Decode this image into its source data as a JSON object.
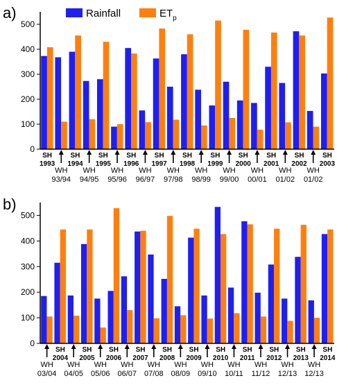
{
  "figure": {
    "legend": {
      "rainfall": "Rainfall",
      "etp_base": "ET",
      "etp_sub": "p"
    },
    "colors": {
      "rainfall": "#1f1fef",
      "etp": "#ff7f0e",
      "axis": "#000000"
    }
  },
  "chart_data": [
    {
      "type": "bar",
      "panel_label": "a)",
      "series": [
        {
          "name": "Rainfall",
          "color": "#1f1fef",
          "values": [
            373,
            368,
            390,
            273,
            280,
            90,
            405,
            155,
            363,
            250,
            380,
            238,
            175,
            270,
            195,
            185,
            330,
            265,
            472,
            153,
            303
          ]
        },
        {
          "name": "ETp",
          "color": "#ff7f0e",
          "values": [
            408,
            110,
            455,
            120,
            430,
            100,
            383,
            108,
            483,
            118,
            460,
            95,
            515,
            125,
            478,
            78,
            467,
            107,
            455,
            90,
            527
          ]
        }
      ],
      "season": [
        "SH",
        "WH",
        "SH",
        "WH",
        "SH",
        "WH",
        "SH",
        "WH",
        "SH",
        "WH",
        "SH",
        "WH",
        "SH",
        "WH",
        "SH",
        "WH",
        "SH",
        "WH",
        "SH",
        "WH",
        "SH"
      ],
      "period": [
        "1993",
        "93/94",
        "1994",
        "94/95",
        "1995",
        "95/96",
        "1996",
        "96/97",
        "1997",
        "97/98",
        "1998",
        "98/99",
        "1999",
        "99/00",
        "2000",
        "00/01",
        "2001",
        "01/02",
        "2002",
        "01/02",
        "2003"
      ],
      "yticks": [
        0,
        100,
        200,
        300,
        400,
        500
      ],
      "ylim": [
        0,
        550
      ]
    },
    {
      "type": "bar",
      "panel_label": "b)",
      "series": [
        {
          "name": "Rainfall",
          "color": "#1f1fef",
          "values": [
            185,
            315,
            187,
            388,
            175,
            205,
            262,
            437,
            347,
            252,
            145,
            413,
            187,
            533,
            218,
            477,
            198,
            308,
            175,
            338,
            168,
            427
          ]
        },
        {
          "name": "ETp",
          "color": "#ff7f0e",
          "values": [
            105,
            445,
            108,
            445,
            62,
            528,
            130,
            440,
            98,
            498,
            110,
            448,
            97,
            427,
            118,
            465,
            105,
            448,
            88,
            463,
            100,
            445
          ]
        }
      ],
      "season": [
        "WH",
        "SH",
        "WH",
        "SH",
        "WH",
        "SH",
        "WH",
        "SH",
        "WH",
        "SH",
        "WH",
        "SH",
        "WH",
        "SH",
        "WH",
        "SH",
        "WH",
        "SH",
        "WH",
        "SH",
        "WH",
        "SH"
      ],
      "period": [
        "03/04",
        "2004",
        "04/05",
        "2005",
        "05/06",
        "2006",
        "06/07",
        "2007",
        "07/08",
        "2008",
        "08/09",
        "2009",
        "09/10",
        "2010",
        "10/11",
        "2011",
        "11/12",
        "2012",
        "12/13",
        "2013",
        "12/13",
        "2014"
      ],
      "yticks": [
        0,
        100,
        200,
        300,
        400,
        500
      ],
      "ylim": [
        0,
        550
      ]
    }
  ]
}
